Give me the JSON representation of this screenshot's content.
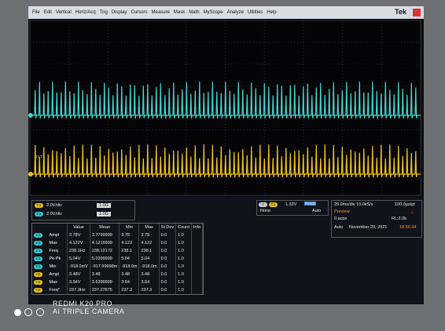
{
  "menu": {
    "items": [
      "File",
      "Edit",
      "Vertical",
      "Horiz/Acq",
      "Trig",
      "Display",
      "Cursors",
      "Measure",
      "Mask",
      "Math",
      "MyScope",
      "Analyze",
      "Utilities",
      "Help"
    ],
    "brand": "Tek"
  },
  "waveform": {
    "marker": "RST"
  },
  "channels": [
    {
      "label": "C1",
      "scale": "2.0V/div",
      "bandwidth": "1.0G"
    },
    {
      "label": "C2",
      "scale": "2.0V/div",
      "bandwidth": "1.0G"
    }
  ],
  "trigger": {
    "source": "C1",
    "level": "1.32V",
    "coupling": "None",
    "mode": "Auto",
    "status": "Ready"
  },
  "acquisition": {
    "timebase": "20.0ms/div 10.0kS/s",
    "resolution": "100.0µs/pt",
    "state": "Preview",
    "acqs": "0 acqs",
    "record_length": "RL:2.0k",
    "mode": "Auto",
    "date": "November 29, 2021",
    "time": "18:56:34"
  },
  "table": {
    "header": [
      "Value",
      "Mean",
      "Min",
      "Max",
      "St Dev",
      "Count",
      "Info"
    ],
    "rows": [
      [
        "C1",
        "Ampl",
        "3.78V",
        "3.7799999",
        "3.78",
        "3.78",
        "0.0",
        "1.0"
      ],
      [
        "C1",
        "Max",
        "4.122V",
        "4.1219999",
        "4.122",
        "4.122",
        "0.0",
        "1.0"
      ],
      [
        "C1",
        "Freq",
        "238.1Hz",
        "238.12172",
        "238.1",
        "238.1",
        "0.0",
        "1.0"
      ],
      [
        "C1",
        "Pk-Pk",
        "5.04V",
        "5.0399999",
        "5.04",
        "5.04",
        "0.0",
        "1.0"
      ],
      [
        "C1",
        "Min",
        "-918.0mV",
        "-917.99998m",
        "-918.0m",
        "-918.0m",
        "0.0",
        "1.0"
      ],
      [
        "C2",
        "Ampl",
        "3.48V",
        "3.48",
        "3.48",
        "3.48",
        "0.0",
        "1.0"
      ],
      [
        "C2",
        "Max",
        "3.64V",
        "3.6399999",
        "3.64",
        "3.64",
        "0.0",
        "1.0"
      ],
      [
        "C2",
        "Freq*",
        "237.3Hz",
        "237.27875",
        "237.3",
        "237.3",
        "0.0",
        "1.0"
      ]
    ]
  },
  "watermark": {
    "model": "REDMI K20 PRO",
    "camera": "AI TRIPLE CAMERA"
  }
}
